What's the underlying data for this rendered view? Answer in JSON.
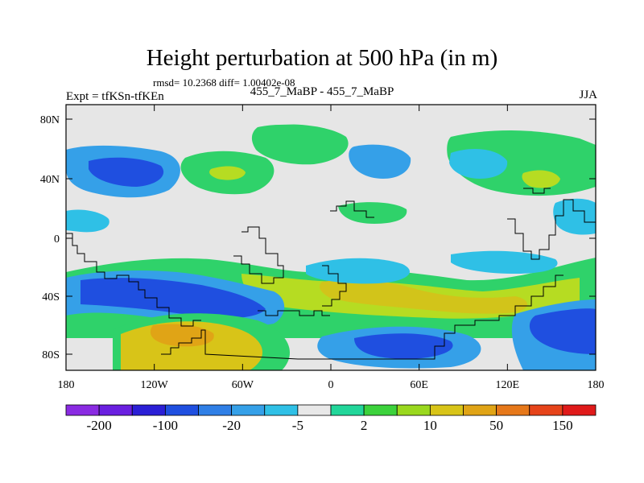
{
  "title": "Height perturbation at 500 hPa (in m)",
  "stats": "rmsd= 10.2368 diff= 1.00402e-08",
  "experiment": "Expt = tfKSn-tfKEn",
  "case_label": "455_7_MaBP - 455_7_MaBP",
  "season": "JJA",
  "lat_ticks": [
    "80N",
    "40N",
    "0",
    "40S",
    "80S"
  ],
  "lon_ticks": [
    "180",
    "120W",
    "60W",
    "0",
    "60E",
    "120E",
    "180"
  ],
  "colorbar": {
    "colors": [
      "#8a2be2",
      "#6a1fe0",
      "#2b1fd6",
      "#1f4fe0",
      "#2f7fe6",
      "#35a0e8",
      "#2fc0e6",
      "#e8e8e8",
      "#22d69a",
      "#3cd23c",
      "#9ad81e",
      "#d8c418",
      "#e0a416",
      "#e6781a",
      "#e6441a",
      "#e01a1a"
    ],
    "labels": [
      "-200",
      "-100",
      "-20",
      "-5",
      "2",
      "10",
      "50",
      "150"
    ]
  }
}
